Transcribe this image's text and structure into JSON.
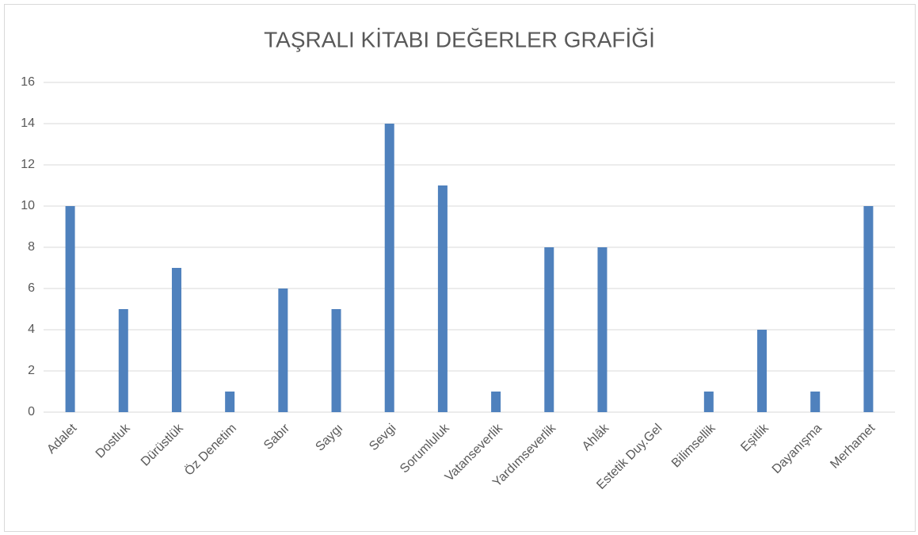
{
  "chart_data": {
    "type": "bar",
    "title": "TAŞRALI KİTABI DEĞERLER GRAFİĞİ",
    "categories": [
      "Adalet",
      "Dostluk",
      "Dürüstlük",
      "Öz Denetim",
      "Sabır",
      "Saygı",
      "Sevgi",
      "Sorumluluk",
      "Vatanseverlik",
      "Yardımseverlik",
      "Ahlâk",
      "Estetik Duy.Gel",
      "Bilimsellik",
      "Eşitlik",
      "Dayanışma",
      "Merhamet"
    ],
    "values": [
      10,
      5,
      7,
      1,
      6,
      5,
      14,
      11,
      1,
      8,
      8,
      0,
      1,
      4,
      1,
      10
    ],
    "color": "#4f81bd",
    "ylim": [
      0,
      16
    ],
    "yticks": [
      0,
      2,
      4,
      6,
      8,
      10,
      12,
      14,
      16
    ],
    "grid": true
  }
}
